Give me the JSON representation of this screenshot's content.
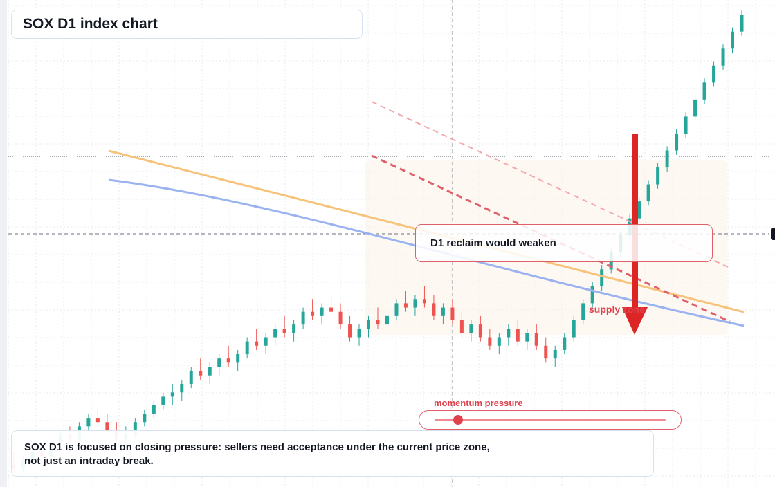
{
  "title": "SOX D1 index chart",
  "callout_text": "D1 reclaim would weaken",
  "zone_label": "supply zone",
  "momentum": {
    "label": "momentum pressure",
    "level": 0.1
  },
  "note_lines": [
    "SOX D1 is focused on closing pressure: sellers need acceptance under the current price zone,",
    "not just an intraday break."
  ],
  "colors": {
    "up": "#26a69a",
    "down": "#ef5350",
    "orange_line": "#f7c37a",
    "blue_line": "#9ab3f0",
    "dashed_trend": "#e0606a",
    "arrow": "#dc2626",
    "zone_fill": "#fdf3ea"
  },
  "chart_data": {
    "type": "candlestick",
    "title": "SOX D1 index chart",
    "y_range": [
      0,
      1
    ],
    "candles": [
      [
        0.03,
        0.06,
        0.01,
        0.02
      ],
      [
        0.02,
        0.05,
        0.01,
        0.04
      ],
      [
        0.04,
        0.07,
        0.03,
        0.06
      ],
      [
        0.06,
        0.08,
        0.04,
        0.05
      ],
      [
        0.05,
        0.09,
        0.04,
        0.08
      ],
      [
        0.08,
        0.11,
        0.07,
        0.1
      ],
      [
        0.1,
        0.12,
        0.08,
        0.09
      ],
      [
        0.09,
        0.13,
        0.08,
        0.12
      ],
      [
        0.12,
        0.15,
        0.11,
        0.14
      ],
      [
        0.14,
        0.16,
        0.12,
        0.13
      ],
      [
        0.13,
        0.15,
        0.1,
        0.11
      ],
      [
        0.11,
        0.13,
        0.08,
        0.09
      ],
      [
        0.09,
        0.12,
        0.07,
        0.1
      ],
      [
        0.1,
        0.14,
        0.09,
        0.13
      ],
      [
        0.13,
        0.16,
        0.12,
        0.15
      ],
      [
        0.15,
        0.18,
        0.14,
        0.17
      ],
      [
        0.17,
        0.2,
        0.16,
        0.19
      ],
      [
        0.19,
        0.22,
        0.17,
        0.2
      ],
      [
        0.2,
        0.23,
        0.18,
        0.22
      ],
      [
        0.22,
        0.26,
        0.21,
        0.25
      ],
      [
        0.25,
        0.28,
        0.23,
        0.24
      ],
      [
        0.24,
        0.27,
        0.22,
        0.26
      ],
      [
        0.26,
        0.29,
        0.24,
        0.28
      ],
      [
        0.28,
        0.31,
        0.26,
        0.27
      ],
      [
        0.27,
        0.3,
        0.25,
        0.29
      ],
      [
        0.29,
        0.33,
        0.28,
        0.32
      ],
      [
        0.32,
        0.35,
        0.3,
        0.31
      ],
      [
        0.31,
        0.34,
        0.29,
        0.33
      ],
      [
        0.33,
        0.36,
        0.31,
        0.35
      ],
      [
        0.35,
        0.38,
        0.33,
        0.34
      ],
      [
        0.34,
        0.37,
        0.32,
        0.36
      ],
      [
        0.36,
        0.4,
        0.35,
        0.39
      ],
      [
        0.39,
        0.42,
        0.37,
        0.38
      ],
      [
        0.38,
        0.41,
        0.36,
        0.4
      ],
      [
        0.4,
        0.43,
        0.38,
        0.39
      ],
      [
        0.39,
        0.41,
        0.35,
        0.36
      ],
      [
        0.36,
        0.38,
        0.32,
        0.33
      ],
      [
        0.33,
        0.36,
        0.31,
        0.35
      ],
      [
        0.35,
        0.38,
        0.33,
        0.37
      ],
      [
        0.37,
        0.4,
        0.35,
        0.36
      ],
      [
        0.36,
        0.39,
        0.34,
        0.38
      ],
      [
        0.38,
        0.42,
        0.37,
        0.41
      ],
      [
        0.41,
        0.44,
        0.39,
        0.4
      ],
      [
        0.4,
        0.43,
        0.38,
        0.42
      ],
      [
        0.42,
        0.45,
        0.4,
        0.41
      ],
      [
        0.41,
        0.43,
        0.37,
        0.38
      ],
      [
        0.38,
        0.41,
        0.36,
        0.4
      ],
      [
        0.4,
        0.42,
        0.36,
        0.37
      ],
      [
        0.37,
        0.39,
        0.33,
        0.34
      ],
      [
        0.34,
        0.37,
        0.32,
        0.36
      ],
      [
        0.36,
        0.38,
        0.32,
        0.33
      ],
      [
        0.33,
        0.35,
        0.3,
        0.31
      ],
      [
        0.31,
        0.34,
        0.29,
        0.33
      ],
      [
        0.33,
        0.36,
        0.31,
        0.35
      ],
      [
        0.35,
        0.37,
        0.31,
        0.32
      ],
      [
        0.32,
        0.35,
        0.3,
        0.34
      ],
      [
        0.34,
        0.36,
        0.3,
        0.31
      ],
      [
        0.31,
        0.33,
        0.27,
        0.28
      ],
      [
        0.28,
        0.31,
        0.26,
        0.3
      ],
      [
        0.3,
        0.34,
        0.29,
        0.33
      ],
      [
        0.33,
        0.38,
        0.32,
        0.37
      ],
      [
        0.37,
        0.42,
        0.36,
        0.41
      ],
      [
        0.41,
        0.46,
        0.4,
        0.45
      ],
      [
        0.45,
        0.5,
        0.44,
        0.49
      ],
      [
        0.49,
        0.54,
        0.48,
        0.53
      ],
      [
        0.53,
        0.58,
        0.52,
        0.57
      ],
      [
        0.57,
        0.62,
        0.56,
        0.61
      ],
      [
        0.61,
        0.66,
        0.6,
        0.65
      ],
      [
        0.65,
        0.7,
        0.64,
        0.69
      ],
      [
        0.69,
        0.74,
        0.68,
        0.73
      ],
      [
        0.73,
        0.78,
        0.72,
        0.77
      ],
      [
        0.77,
        0.82,
        0.76,
        0.81
      ],
      [
        0.81,
        0.86,
        0.8,
        0.85
      ],
      [
        0.85,
        0.9,
        0.84,
        0.89
      ],
      [
        0.89,
        0.94,
        0.88,
        0.93
      ],
      [
        0.93,
        0.98,
        0.92,
        0.97
      ],
      [
        0.97,
        1.02,
        0.96,
        1.01
      ],
      [
        1.01,
        1.06,
        1.0,
        1.05
      ],
      [
        1.05,
        1.1,
        1.04,
        1.09
      ]
    ]
  }
}
